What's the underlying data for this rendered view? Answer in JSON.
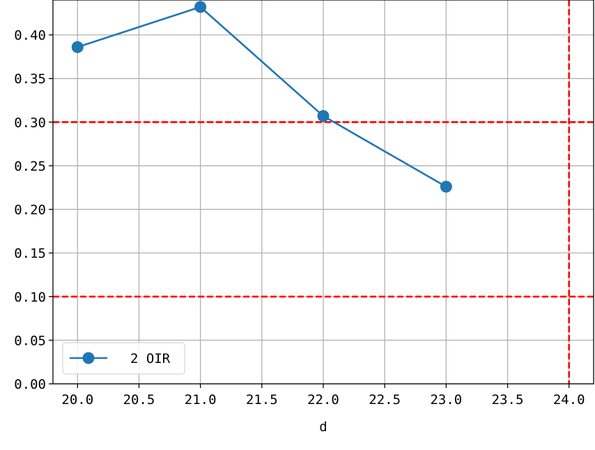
{
  "chart_data": {
    "type": "line",
    "title": "",
    "xlabel": "d",
    "ylabel": "",
    "xlim": [
      19.8,
      24.2
    ],
    "ylim": [
      0.0,
      0.44
    ],
    "grid": true,
    "legend_position": "lower-left",
    "x_ticks": [
      "20.0",
      "20.5",
      "21.0",
      "21.5",
      "22.0",
      "22.5",
      "23.0",
      "23.5",
      "24.0"
    ],
    "x_tick_values": [
      20.0,
      20.5,
      21.0,
      21.5,
      22.0,
      22.5,
      23.0,
      23.5,
      24.0
    ],
    "y_ticks": [
      "0.00",
      "0.05",
      "0.10",
      "0.15",
      "0.20",
      "0.25",
      "0.30",
      "0.35",
      "0.40"
    ],
    "y_tick_values": [
      0.0,
      0.05,
      0.1,
      0.15,
      0.2,
      0.25,
      0.3,
      0.35,
      0.4
    ],
    "series": [
      {
        "name": "2 OIR",
        "color": "#1f77b4",
        "marker": "circle",
        "x": [
          20.0,
          21.0,
          22.0,
          23.0
        ],
        "y": [
          0.386,
          0.432,
          0.307,
          0.226
        ]
      }
    ],
    "reference_lines": [
      {
        "orientation": "horizontal",
        "value": 0.3,
        "color": "#ff0000",
        "style": "dashed"
      },
      {
        "orientation": "horizontal",
        "value": 0.1,
        "color": "#ff0000",
        "style": "dashed"
      },
      {
        "orientation": "vertical",
        "value": 24.0,
        "color": "#ff0000",
        "style": "dashed"
      }
    ]
  }
}
